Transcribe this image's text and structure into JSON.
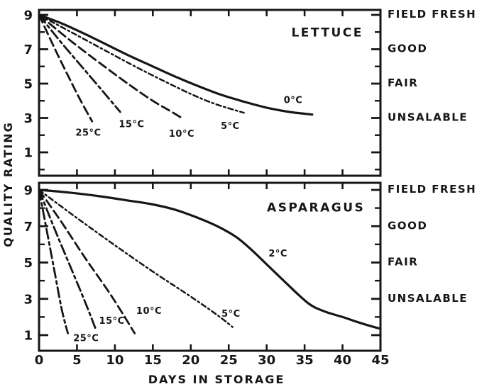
{
  "figure": {
    "y_axis_label": "QUALITY RATING",
    "x_axis_label": "DAYS IN STORAGE",
    "ink_color": "#161616",
    "background_color": "#ffffff"
  },
  "chart_data": [
    {
      "type": "line",
      "title": "LETTUCE",
      "xlabel": "DAYS IN STORAGE",
      "ylabel": "QUALITY RATING",
      "xlim": [
        0,
        45
      ],
      "ylim": [
        0,
        9.4
      ],
      "x_ticks": [
        0,
        5,
        10,
        15,
        20,
        25,
        30,
        35,
        40,
        45
      ],
      "x_tick_labels_shown": false,
      "y_ticks_major": [
        9,
        7,
        5,
        3,
        1
      ],
      "y_ticks_minor": [
        8,
        6,
        4,
        2,
        0
      ],
      "grid": false,
      "title_at": [
        38,
        8.0
      ],
      "right_scale_labels": [
        {
          "text": "FIELD FRESH",
          "at": 9
        },
        {
          "text": "GOOD",
          "at": 7
        },
        {
          "text": "FAIR",
          "at": 5
        },
        {
          "text": "UNSALABLE",
          "at": 3
        }
      ],
      "series": [
        {
          "name": "0°C",
          "line_style": "solid",
          "label_at": [
            33.5,
            4.05
          ],
          "points": [
            [
              0,
              9
            ],
            [
              3,
              8.5
            ],
            [
              6,
              7.9
            ],
            [
              9,
              7.25
            ],
            [
              12,
              6.6
            ],
            [
              15,
              6.0
            ],
            [
              18,
              5.4
            ],
            [
              21,
              4.85
            ],
            [
              24,
              4.35
            ],
            [
              27,
              3.95
            ],
            [
              30,
              3.6
            ],
            [
              33,
              3.35
            ],
            [
              36,
              3.2
            ]
          ]
        },
        {
          "name": "5°C",
          "line_style": "dash-dot-fine",
          "label_at": [
            25.2,
            2.55
          ],
          "points": [
            [
              0,
              9
            ],
            [
              4,
              8.05
            ],
            [
              8,
              7.1
            ],
            [
              12,
              6.15
            ],
            [
              16,
              5.25
            ],
            [
              20,
              4.4
            ],
            [
              23,
              3.85
            ],
            [
              25.5,
              3.5
            ],
            [
              27,
              3.3
            ]
          ]
        },
        {
          "name": "10°C",
          "line_style": "dashed",
          "label_at": [
            18.8,
            2.1
          ],
          "points": [
            [
              0,
              9
            ],
            [
              4,
              7.55
            ],
            [
              8,
              6.2
            ],
            [
              12,
              4.9
            ],
            [
              15,
              4.0
            ],
            [
              17.5,
              3.35
            ],
            [
              19,
              2.95
            ]
          ]
        },
        {
          "name": "15°C",
          "line_style": "dash-dot",
          "label_at": [
            12.2,
            2.65
          ],
          "points": [
            [
              0,
              9
            ],
            [
              3,
              7.35
            ],
            [
              6,
              5.8
            ],
            [
              8.5,
              4.5
            ],
            [
              10.7,
              3.35
            ]
          ]
        },
        {
          "name": "25°C",
          "line_style": "dashed",
          "label_at": [
            6.5,
            2.15
          ],
          "points": [
            [
              0,
              9
            ],
            [
              2,
              7.1
            ],
            [
              4,
              5.3
            ],
            [
              5.5,
              4.0
            ],
            [
              7,
              2.8
            ]
          ]
        }
      ]
    },
    {
      "type": "line",
      "title": "ASPARAGUS",
      "xlabel": "DAYS IN STORAGE",
      "ylabel": "QUALITY RATING",
      "xlim": [
        0,
        45
      ],
      "ylim": [
        0.2,
        9.4
      ],
      "x_ticks": [
        0,
        5,
        10,
        15,
        20,
        25,
        30,
        35,
        40,
        45
      ],
      "x_tick_labels_shown": true,
      "y_ticks_major": [
        9,
        7,
        5,
        3,
        1
      ],
      "y_ticks_minor": [
        8,
        6,
        4,
        2
      ],
      "grid": false,
      "title_at": [
        36.5,
        8.05
      ],
      "right_scale_labels": [
        {
          "text": "FIELD FRESH",
          "at": 9
        },
        {
          "text": "GOOD",
          "at": 7
        },
        {
          "text": "FAIR",
          "at": 5
        },
        {
          "text": "UNSALABLE",
          "at": 3
        }
      ],
      "series": [
        {
          "name": "2°C",
          "line_style": "solid",
          "label_at": [
            31.5,
            5.5
          ],
          "points": [
            [
              0,
              9
            ],
            [
              4,
              8.85
            ],
            [
              8,
              8.65
            ],
            [
              12,
              8.4
            ],
            [
              15,
              8.2
            ],
            [
              18,
              7.9
            ],
            [
              21,
              7.45
            ],
            [
              23.5,
              7.0
            ],
            [
              26,
              6.4
            ],
            [
              28,
              5.7
            ],
            [
              30,
              4.9
            ],
            [
              32,
              4.1
            ],
            [
              34,
              3.3
            ],
            [
              35.5,
              2.75
            ],
            [
              36.5,
              2.5
            ],
            [
              38,
              2.25
            ],
            [
              40,
              2.0
            ],
            [
              42.5,
              1.65
            ],
            [
              45,
              1.35
            ]
          ]
        },
        {
          "name": "5°C",
          "line_style": "dash-dot-fine",
          "label_at": [
            25.3,
            2.2
          ],
          "points": [
            [
              0,
              9
            ],
            [
              5,
              7.45
            ],
            [
              10,
              5.95
            ],
            [
              15,
              4.5
            ],
            [
              19,
              3.4
            ],
            [
              22,
              2.55
            ],
            [
              24,
              1.95
            ],
            [
              25.5,
              1.45
            ]
          ]
        },
        {
          "name": "10°C",
          "line_style": "dashed",
          "label_at": [
            14.5,
            2.35
          ],
          "points": [
            [
              0,
              9
            ],
            [
              3,
              7.2
            ],
            [
              6,
              5.3
            ],
            [
              9,
              3.5
            ],
            [
              11,
              2.2
            ],
            [
              12.6,
              1.1
            ]
          ]
        },
        {
          "name": "15°C",
          "line_style": "dash-dot",
          "label_at": [
            9.6,
            1.8
          ],
          "points": [
            [
              0,
              9
            ],
            [
              2,
              6.9
            ],
            [
              4,
              4.9
            ],
            [
              6,
              2.9
            ],
            [
              7.5,
              1.3
            ]
          ]
        },
        {
          "name": "25°C",
          "line_style": "dash-dot",
          "label_at": [
            6.2,
            0.85
          ],
          "points": [
            [
              0,
              9
            ],
            [
              1,
              6.8
            ],
            [
              2,
              4.6
            ],
            [
              3,
              2.4
            ],
            [
              3.8,
              1.1
            ]
          ]
        }
      ]
    }
  ]
}
